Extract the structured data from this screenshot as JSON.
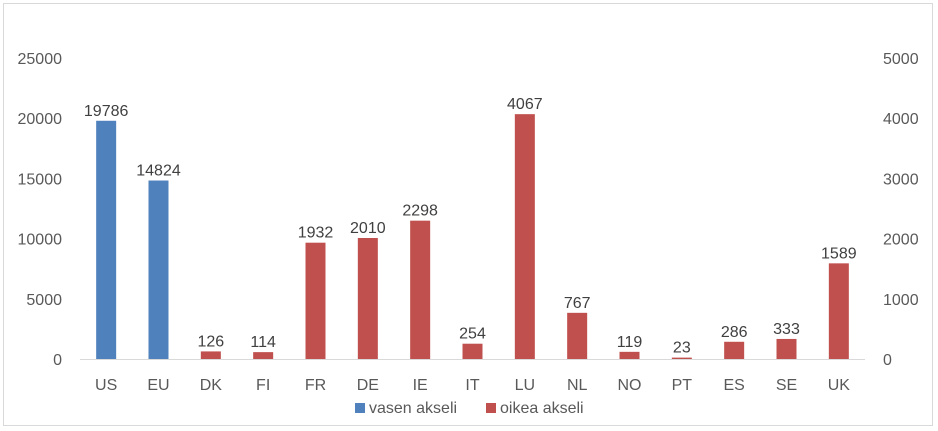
{
  "chart_data": {
    "type": "bar",
    "title": "",
    "xlabel": "",
    "ylabel": "",
    "categories": [
      "US",
      "EU",
      "DK",
      "FI",
      "FR",
      "DE",
      "IE",
      "IT",
      "LU",
      "NL",
      "NO",
      "PT",
      "ES",
      "SE",
      "UK"
    ],
    "series": [
      {
        "name": "vasen akseli",
        "axis": "left",
        "color": "#4f81bd",
        "values": [
          19786,
          14824,
          null,
          null,
          null,
          null,
          null,
          null,
          null,
          null,
          null,
          null,
          null,
          null,
          null
        ]
      },
      {
        "name": "oikea akseli",
        "axis": "right",
        "color": "#c0504d",
        "values": [
          null,
          null,
          126,
          114,
          1932,
          2010,
          2298,
          254,
          4067,
          767,
          119,
          23,
          286,
          333,
          1589
        ]
      }
    ],
    "ylim_left": [
      0,
      25000
    ],
    "yticks_left": [
      "0",
      "5000",
      "10000",
      "15000",
      "20000",
      "25000"
    ],
    "ylim_right": [
      0,
      5000
    ],
    "yticks_right": [
      "0",
      "1000",
      "2000",
      "3000",
      "4000",
      "5000"
    ],
    "grid": false,
    "legend": "bottom"
  }
}
